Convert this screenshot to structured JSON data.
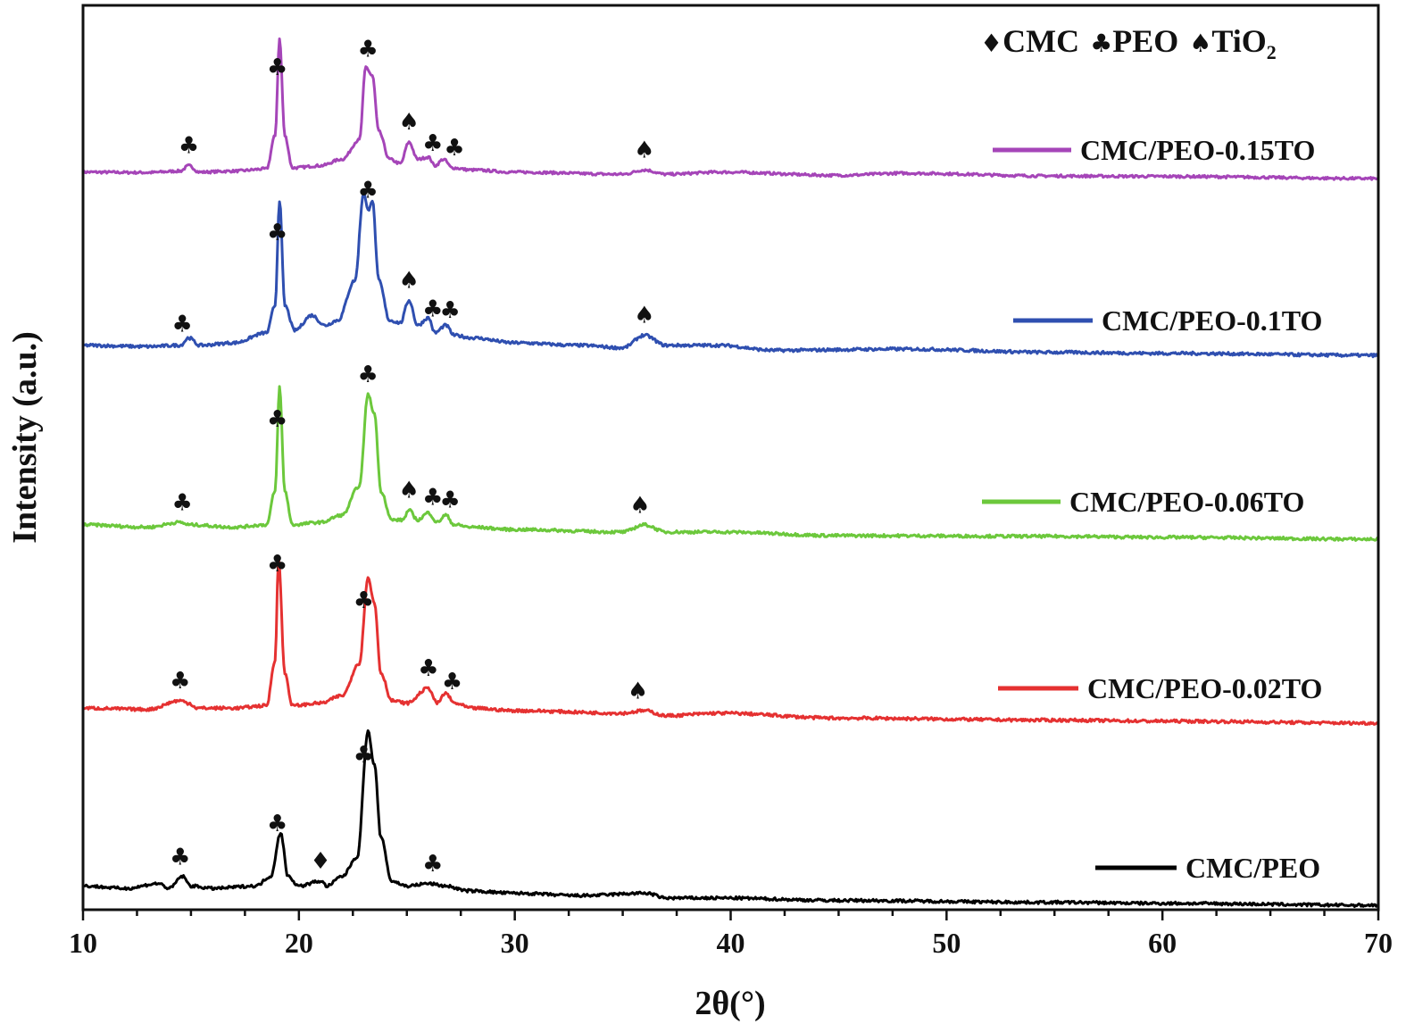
{
  "chart_data": {
    "type": "line",
    "title": "",
    "xlabel": "2θ(°)",
    "ylabel": "Intensity (a.u.)",
    "xlim": [
      10,
      70
    ],
    "x_ticks": [
      "10",
      "20",
      "30",
      "40",
      "50",
      "60",
      "70"
    ],
    "y_ticks_shown": false,
    "grid": false,
    "legend_placement": "right, beside each curve",
    "phase_key": [
      {
        "symbol": "♦",
        "label": "CMC"
      },
      {
        "symbol": "♣",
        "label": "PEO"
      },
      {
        "symbol": "♠",
        "label": "TiO",
        "subscript": "2"
      }
    ],
    "series": [
      {
        "name": "CMC/PEO-0.15TO",
        "color": "#a545b8",
        "points": [
          [
            10,
            0.03
          ],
          [
            13,
            0.028
          ],
          [
            14.5,
            0.035
          ],
          [
            14.9,
            0.06
          ],
          [
            15.4,
            0.03
          ],
          [
            17,
            0.035
          ],
          [
            18.5,
            0.045
          ],
          [
            18.9,
            0.2
          ],
          [
            19.1,
            0.65
          ],
          [
            19.35,
            0.2
          ],
          [
            19.7,
            0.05
          ],
          [
            21,
            0.06
          ],
          [
            22,
            0.09
          ],
          [
            22.8,
            0.18
          ],
          [
            23.1,
            0.52
          ],
          [
            23.4,
            0.48
          ],
          [
            23.7,
            0.22
          ],
          [
            24.2,
            0.09
          ],
          [
            24.7,
            0.07
          ],
          [
            25.1,
            0.17
          ],
          [
            25.5,
            0.09
          ],
          [
            26,
            0.1
          ],
          [
            26.3,
            0.06
          ],
          [
            26.7,
            0.09
          ],
          [
            27.1,
            0.05
          ],
          [
            28,
            0.04
          ],
          [
            30,
            0.03
          ],
          [
            35,
            0.02
          ],
          [
            36,
            0.04
          ],
          [
            37,
            0.02
          ],
          [
            39.5,
            0.03
          ],
          [
            45,
            0.015
          ],
          [
            48,
            0.025
          ],
          [
            55,
            0.012
          ],
          [
            60,
            0.01
          ],
          [
            70,
            0.0
          ]
        ],
        "annotations": [
          {
            "x": 14.9,
            "symbol": "♣"
          },
          {
            "x": 19.0,
            "symbol": "♣"
          },
          {
            "x": 23.2,
            "symbol": "♣"
          },
          {
            "x": 25.1,
            "symbol": "♠"
          },
          {
            "x": 26.2,
            "symbol": "♣"
          },
          {
            "x": 27.2,
            "symbol": "♣"
          },
          {
            "x": 36.0,
            "symbol": "♠"
          }
        ]
      },
      {
        "name": "CMC/PEO-0.1TO",
        "color": "#2f4fb0",
        "points": [
          [
            10,
            0.04
          ],
          [
            13,
            0.035
          ],
          [
            14.5,
            0.04
          ],
          [
            14.9,
            0.07
          ],
          [
            15.4,
            0.04
          ],
          [
            17,
            0.05
          ],
          [
            18.5,
            0.09
          ],
          [
            18.9,
            0.2
          ],
          [
            19.1,
            0.62
          ],
          [
            19.35,
            0.2
          ],
          [
            19.8,
            0.1
          ],
          [
            20.6,
            0.16
          ],
          [
            21.2,
            0.12
          ],
          [
            21.8,
            0.14
          ],
          [
            22.6,
            0.3
          ],
          [
            23.0,
            0.65
          ],
          [
            23.2,
            0.58
          ],
          [
            23.4,
            0.62
          ],
          [
            23.7,
            0.3
          ],
          [
            24.2,
            0.14
          ],
          [
            24.7,
            0.13
          ],
          [
            25.1,
            0.22
          ],
          [
            25.5,
            0.12
          ],
          [
            26,
            0.15
          ],
          [
            26.3,
            0.09
          ],
          [
            26.8,
            0.12
          ],
          [
            27.2,
            0.08
          ],
          [
            28,
            0.07
          ],
          [
            30,
            0.05
          ],
          [
            33,
            0.04
          ],
          [
            35,
            0.03
          ],
          [
            36,
            0.08
          ],
          [
            37,
            0.04
          ],
          [
            39.5,
            0.04
          ],
          [
            42,
            0.02
          ],
          [
            48,
            0.025
          ],
          [
            55,
            0.012
          ],
          [
            60,
            0.008
          ],
          [
            70,
            0.0
          ]
        ],
        "annotations": [
          {
            "x": 14.6,
            "symbol": "♣"
          },
          {
            "x": 19.0,
            "symbol": "♣"
          },
          {
            "x": 23.2,
            "symbol": "♣"
          },
          {
            "x": 25.1,
            "symbol": "♠"
          },
          {
            "x": 26.2,
            "symbol": "♣"
          },
          {
            "x": 27.0,
            "symbol": "♣"
          },
          {
            "x": 36.0,
            "symbol": "♠"
          }
        ]
      },
      {
        "name": "CMC/PEO-0.06TO",
        "color": "#6cc83c",
        "points": [
          [
            10,
            0.06
          ],
          [
            13,
            0.05
          ],
          [
            14.5,
            0.07
          ],
          [
            14.9,
            0.06
          ],
          [
            17,
            0.05
          ],
          [
            18.5,
            0.06
          ],
          [
            18.9,
            0.2
          ],
          [
            19.1,
            0.63
          ],
          [
            19.35,
            0.2
          ],
          [
            19.7,
            0.06
          ],
          [
            21,
            0.07
          ],
          [
            22,
            0.1
          ],
          [
            22.8,
            0.22
          ],
          [
            23.2,
            0.6
          ],
          [
            23.5,
            0.52
          ],
          [
            23.8,
            0.2
          ],
          [
            24.3,
            0.08
          ],
          [
            24.8,
            0.08
          ],
          [
            25.1,
            0.12
          ],
          [
            25.5,
            0.08
          ],
          [
            26,
            0.11
          ],
          [
            26.4,
            0.07
          ],
          [
            26.8,
            0.1
          ],
          [
            27.2,
            0.06
          ],
          [
            28,
            0.05
          ],
          [
            30,
            0.04
          ],
          [
            35,
            0.03
          ],
          [
            36,
            0.06
          ],
          [
            37,
            0.03
          ],
          [
            39.5,
            0.03
          ],
          [
            45,
            0.015
          ],
          [
            55,
            0.012
          ],
          [
            60,
            0.008
          ],
          [
            70,
            0.0
          ]
        ],
        "annotations": [
          {
            "x": 14.6,
            "symbol": "♣"
          },
          {
            "x": 19.0,
            "symbol": "♣"
          },
          {
            "x": 23.2,
            "symbol": "♣"
          },
          {
            "x": 25.1,
            "symbol": "♠"
          },
          {
            "x": 26.2,
            "symbol": "♣"
          },
          {
            "x": 27.0,
            "symbol": "♣"
          },
          {
            "x": 35.8,
            "symbol": "♠"
          }
        ]
      },
      {
        "name": "CMC/PEO-0.02TO",
        "color": "#e53131",
        "points": [
          [
            10,
            0.06
          ],
          [
            13,
            0.055
          ],
          [
            14.5,
            0.09
          ],
          [
            14.9,
            0.08
          ],
          [
            15.3,
            0.06
          ],
          [
            17,
            0.06
          ],
          [
            18.5,
            0.07
          ],
          [
            18.9,
            0.25
          ],
          [
            19.05,
            0.66
          ],
          [
            19.35,
            0.2
          ],
          [
            19.7,
            0.07
          ],
          [
            21,
            0.08
          ],
          [
            22,
            0.11
          ],
          [
            22.8,
            0.24
          ],
          [
            23.2,
            0.58
          ],
          [
            23.5,
            0.48
          ],
          [
            23.8,
            0.2
          ],
          [
            24.3,
            0.09
          ],
          [
            25,
            0.08
          ],
          [
            26,
            0.14
          ],
          [
            26.4,
            0.08
          ],
          [
            26.8,
            0.12
          ],
          [
            27.2,
            0.08
          ],
          [
            28,
            0.06
          ],
          [
            30,
            0.05
          ],
          [
            35,
            0.04
          ],
          [
            36,
            0.05
          ],
          [
            37,
            0.03
          ],
          [
            39.5,
            0.04
          ],
          [
            45,
            0.02
          ],
          [
            55,
            0.012
          ],
          [
            60,
            0.008
          ],
          [
            70,
            0.0
          ]
        ],
        "annotations": [
          {
            "x": 14.5,
            "symbol": "♣"
          },
          {
            "x": 19.0,
            "symbol": "♣"
          },
          {
            "x": 23.0,
            "symbol": "♣"
          },
          {
            "x": 26.0,
            "symbol": "♣"
          },
          {
            "x": 27.1,
            "symbol": "♣"
          },
          {
            "x": 35.7,
            "symbol": "♠"
          }
        ]
      },
      {
        "name": "CMC/PEO",
        "color": "#000000",
        "points": [
          [
            10,
            0.08
          ],
          [
            12,
            0.07
          ],
          [
            13.5,
            0.09
          ],
          [
            14,
            0.07
          ],
          [
            14.6,
            0.12
          ],
          [
            15,
            0.08
          ],
          [
            16,
            0.07
          ],
          [
            18,
            0.08
          ],
          [
            18.7,
            0.12
          ],
          [
            19.15,
            0.3
          ],
          [
            19.5,
            0.12
          ],
          [
            20,
            0.08
          ],
          [
            21,
            0.1
          ],
          [
            21.3,
            0.08
          ],
          [
            22,
            0.12
          ],
          [
            22.7,
            0.2
          ],
          [
            23.2,
            0.72
          ],
          [
            23.5,
            0.58
          ],
          [
            23.8,
            0.28
          ],
          [
            24.3,
            0.1
          ],
          [
            25,
            0.08
          ],
          [
            26,
            0.09
          ],
          [
            26.8,
            0.08
          ],
          [
            27.8,
            0.06
          ],
          [
            30,
            0.05
          ],
          [
            33,
            0.04
          ],
          [
            36.1,
            0.05
          ],
          [
            37,
            0.03
          ],
          [
            39.5,
            0.03
          ],
          [
            45,
            0.02
          ],
          [
            55,
            0.012
          ],
          [
            60,
            0.008
          ],
          [
            70,
            0.0
          ]
        ],
        "annotations": [
          {
            "x": 14.5,
            "symbol": "♣"
          },
          {
            "x": 19.0,
            "symbol": "♣"
          },
          {
            "x": 21.0,
            "symbol": "♦"
          },
          {
            "x": 23.0,
            "symbol": "♣"
          },
          {
            "x": 26.2,
            "symbol": "♣"
          }
        ]
      }
    ]
  }
}
